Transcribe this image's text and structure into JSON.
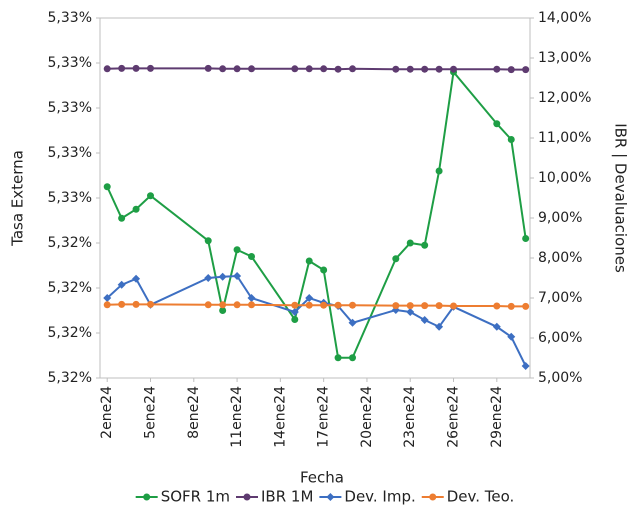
{
  "chart_data": {
    "type": "line",
    "x_label": "Fecha",
    "y_label": "Tasa Externa",
    "y2_label": "IBR | Devaluaciones",
    "x": [
      2,
      3,
      4,
      5,
      9,
      10,
      11,
      12,
      15,
      16,
      17,
      18,
      19,
      22,
      23,
      24,
      25,
      26,
      29,
      30,
      31
    ],
    "xlim": [
      1.5,
      31.3
    ],
    "xticks": [
      {
        "value": 2,
        "label": "2ene24"
      },
      {
        "value": 5,
        "label": "5ene24"
      },
      {
        "value": 8,
        "label": "8ene24"
      },
      {
        "value": 11,
        "label": "11ene24"
      },
      {
        "value": 14,
        "label": "14ene24"
      },
      {
        "value": 17,
        "label": "17ene24"
      },
      {
        "value": 20,
        "label": "20ene24"
      },
      {
        "value": 23,
        "label": "23ene24"
      },
      {
        "value": 26,
        "label": "26ene24"
      },
      {
        "value": 29,
        "label": "29ene24"
      }
    ],
    "ylim": [
      5.317,
      5.333
    ],
    "yticks": [
      {
        "value": 5.317,
        "label": "5,32%"
      },
      {
        "value": 5.319,
        "label": "5,32%"
      },
      {
        "value": 5.321,
        "label": "5,32%"
      },
      {
        "value": 5.323,
        "label": "5,32%"
      },
      {
        "value": 5.325,
        "label": "5,33%"
      },
      {
        "value": 5.327,
        "label": "5,33%"
      },
      {
        "value": 5.329,
        "label": "5,33%"
      },
      {
        "value": 5.331,
        "label": "5,33%"
      },
      {
        "value": 5.333,
        "label": "5,33%"
      }
    ],
    "y2lim": [
      5,
      14
    ],
    "y2ticks": [
      {
        "value": 5,
        "label": "5,00%"
      },
      {
        "value": 6,
        "label": "6,00%"
      },
      {
        "value": 7,
        "label": "7,00%"
      },
      {
        "value": 8,
        "label": "8,00%"
      },
      {
        "value": 9,
        "label": "9,00%"
      },
      {
        "value": 10,
        "label": "10,00%"
      },
      {
        "value": 11,
        "label": "11,00%"
      },
      {
        "value": 12,
        "label": "12,00%"
      },
      {
        "value": 13,
        "label": "13,00%"
      },
      {
        "value": 14,
        "label": "14,00%"
      }
    ],
    "series": [
      {
        "name": "SOFR 1m",
        "color": "#1e9e45",
        "axis": "y",
        "marker": "circle",
        "values": [
          5.3255,
          5.3241,
          5.3245,
          5.3251,
          5.3231,
          5.32,
          5.3227,
          5.3224,
          5.3196,
          5.3222,
          5.3218,
          5.3179,
          5.3179,
          5.3223,
          5.323,
          5.3229,
          5.3262,
          5.3306,
          5.3283,
          5.3276,
          5.3232
        ]
      },
      {
        "name": "IBR 1M",
        "color": "#5e3b70",
        "axis": "y2",
        "marker": "circle",
        "values": [
          12.73,
          12.74,
          12.74,
          12.74,
          12.74,
          12.73,
          12.73,
          12.73,
          12.73,
          12.73,
          12.73,
          12.72,
          12.73,
          12.72,
          12.72,
          12.72,
          12.72,
          12.72,
          12.72,
          12.71,
          12.71
        ]
      },
      {
        "name": "Dev. Imp.",
        "color": "#3d6fc2",
        "axis": "y2",
        "marker": "diamond",
        "values": [
          7.0,
          7.33,
          7.48,
          6.83,
          7.5,
          7.53,
          7.55,
          7.0,
          6.65,
          7.0,
          6.88,
          6.8,
          6.38,
          6.7,
          6.65,
          6.45,
          6.28,
          6.78,
          6.28,
          6.03,
          5.3
        ]
      },
      {
        "name": "Dev. Teo.",
        "color": "#ed7d31",
        "axis": "y2",
        "marker": "circle",
        "values": [
          6.83,
          6.84,
          6.84,
          6.84,
          6.83,
          6.83,
          6.83,
          6.83,
          6.82,
          6.82,
          6.82,
          6.82,
          6.82,
          6.81,
          6.81,
          6.81,
          6.81,
          6.8,
          6.8,
          6.79,
          6.79
        ]
      }
    ]
  }
}
